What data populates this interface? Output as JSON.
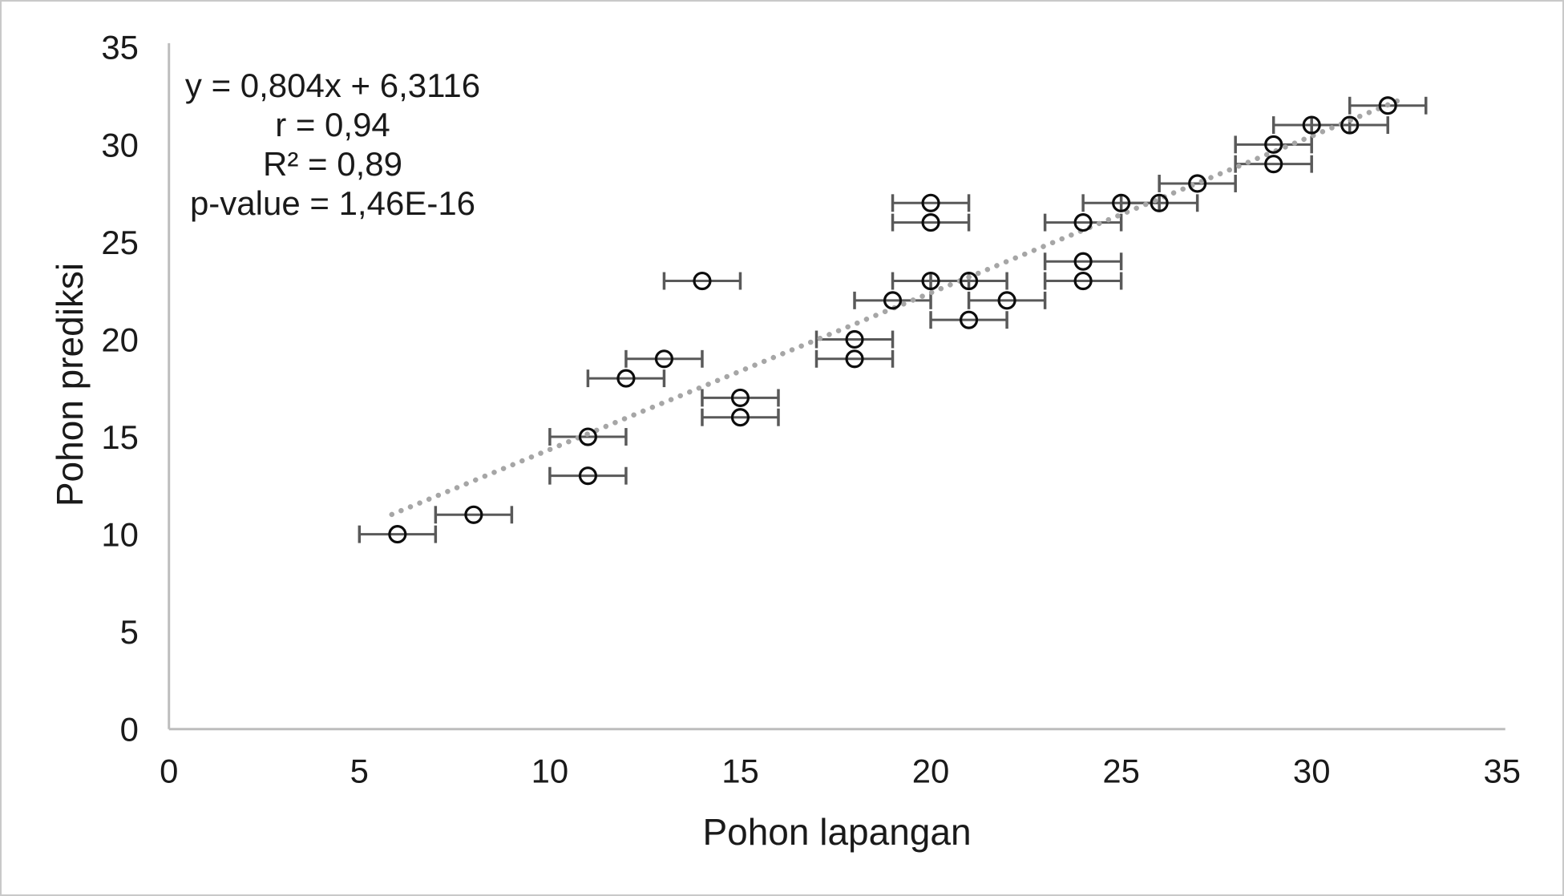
{
  "chart_data": {
    "type": "scatter",
    "title": "",
    "xlabel": "Pohon lapangan",
    "ylabel": "Pohon prediksi",
    "xlim": [
      0,
      35
    ],
    "ylim": [
      0,
      35
    ],
    "xticks": [
      0,
      5,
      10,
      15,
      20,
      25,
      30,
      35
    ],
    "yticks": [
      0,
      5,
      10,
      15,
      20,
      25,
      30,
      35
    ],
    "grid": false,
    "legend": "none",
    "points": [
      [
        6,
        10
      ],
      [
        8,
        11
      ],
      [
        11,
        13
      ],
      [
        11,
        15
      ],
      [
        12,
        18
      ],
      [
        13,
        19
      ],
      [
        14,
        23
      ],
      [
        15,
        16
      ],
      [
        15,
        17
      ],
      [
        18,
        19
      ],
      [
        18,
        20
      ],
      [
        19,
        22
      ],
      [
        20,
        23
      ],
      [
        20,
        26
      ],
      [
        20,
        27
      ],
      [
        21,
        21
      ],
      [
        21,
        23
      ],
      [
        22,
        22
      ],
      [
        24,
        23
      ],
      [
        24,
        24
      ],
      [
        24,
        26
      ],
      [
        25,
        27
      ],
      [
        26,
        27
      ],
      [
        27,
        28
      ],
      [
        29,
        29
      ],
      [
        29,
        30
      ],
      [
        30,
        31
      ],
      [
        31,
        31
      ],
      [
        32,
        32
      ]
    ],
    "x_error": 1,
    "trendline": {
      "style": "dotted",
      "slope": 0.804,
      "intercept": 6.3116,
      "x_start": 5.85,
      "x_end": 32.45
    },
    "annotation": {
      "equation": "y = 0,804x + 6,3116",
      "r": "r = 0,94",
      "r2": "R² = 0,89",
      "pvalue": "p-value = 1,46E-16"
    },
    "colors": {
      "axis_line": "#bdbdbd",
      "error_bar": "#595959",
      "marker_stroke": "#0d0d0d",
      "trend": "#a6a6a6",
      "text": "#1a1a1a"
    }
  }
}
